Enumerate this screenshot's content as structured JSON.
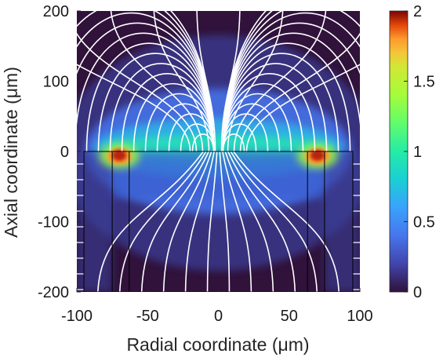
{
  "chart_data": {
    "type": "heatmap",
    "subtype": "field magnitude map with streamlines",
    "title": "",
    "xlabel": "Radial coordinate (μm)",
    "ylabel": "Axial coordinate (μm)",
    "xlim": [
      -100,
      100
    ],
    "ylim": [
      -200,
      200
    ],
    "x_ticks": [
      -100,
      -50,
      0,
      50,
      100
    ],
    "x_tick_labels": [
      "-100",
      "-50",
      "0",
      "50",
      "100"
    ],
    "y_ticks": [
      -200,
      -100,
      0,
      100,
      200
    ],
    "y_tick_labels": [
      "-200",
      "-100",
      "0",
      "100",
      "200"
    ],
    "colorbar": {
      "range": [
        0,
        2
      ],
      "ticks": [
        0,
        0.5,
        1,
        1.5,
        2
      ],
      "tick_labels": [
        "0",
        "0.5",
        "1",
        "1.5",
        "2"
      ],
      "colormap": "turbo"
    },
    "streamline_color": "#ffffff",
    "hotspots": [
      {
        "x": -70,
        "y": 0,
        "value": 2
      },
      {
        "x": 70,
        "y": 0,
        "value": 2
      }
    ],
    "structure_outline": [
      {
        "name": "outer-wall",
        "x": [
          -95,
          95
        ],
        "y": [
          -200,
          0
        ]
      },
      {
        "name": "inner-electrode-left",
        "x": [
          -75,
          -63
        ],
        "y": [
          -200,
          0
        ]
      },
      {
        "name": "inner-electrode-right",
        "x": [
          63,
          75
        ],
        "y": [
          -200,
          0
        ]
      }
    ],
    "interface_line": {
      "y": 0,
      "x": [
        -95,
        95
      ],
      "style": "dashed"
    },
    "grid": false
  }
}
